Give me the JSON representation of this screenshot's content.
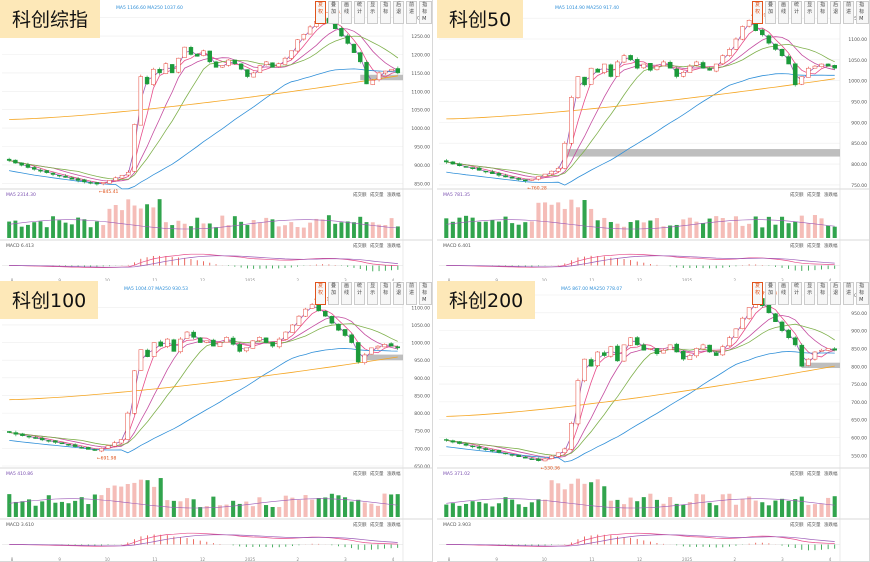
{
  "toolbar": [
    "复权",
    "叠加",
    "画线",
    "统计",
    "显示",
    "指标",
    "后退",
    "前进",
    "指标M"
  ],
  "sub_tabs": [
    "成交额",
    "成交量",
    "涨跌幅"
  ],
  "colors": {
    "up": "#e6473a",
    "down": "#1b9a3a",
    "ma5": "#9b59b6",
    "ma10": "#e74c8a",
    "ma20": "#c44da0",
    "ma30": "#7fb04c",
    "ma60": "#2f8fd8",
    "ma250": "#f5a623",
    "band": "#b3b3b3",
    "macd_dif": "#e74c8a",
    "macd_dea": "#9b59b6",
    "label_bg": "#fde8b8"
  },
  "chart_data": [
    {
      "type": "candlestick",
      "title": "科创综指",
      "price_ylim": [
        840,
        1310
      ],
      "price_ticks": [
        "1300.00",
        "1250.00",
        "1200.00",
        "1150.00",
        "1100.00",
        "1050.00",
        "1000.00",
        "950.00",
        "900.00",
        "850.00"
      ],
      "high_annotation": "1306.90",
      "low_annotation": "845.41",
      "ma_header": "MA5 1166.60   MA250 1037.60",
      "vol_header": "MA5  2314.30",
      "macd_header": "MACD 6.413",
      "gap_band": [
        1145,
        1130
      ],
      "x_ticks": [
        "8",
        "9",
        "10",
        "11",
        "12",
        "2025",
        "2",
        "3",
        "4"
      ],
      "closes": [
        912,
        905,
        899,
        893,
        888,
        883,
        879,
        874,
        870,
        866,
        861,
        858,
        854,
        851,
        848,
        852,
        858,
        865,
        872,
        880,
        1010,
        1140,
        1120,
        1160,
        1150,
        1175,
        1150,
        1190,
        1220,
        1200,
        1195,
        1210,
        1180,
        1165,
        1170,
        1185,
        1175,
        1160,
        1140,
        1150,
        1170,
        1180,
        1165,
        1175,
        1190,
        1210,
        1240,
        1255,
        1275,
        1290,
        1300,
        1285,
        1270,
        1250,
        1230,
        1205,
        1180,
        1120,
        1130,
        1150,
        1155,
        1160,
        1150
      ]
    },
    {
      "type": "candlestick",
      "title": "科创50",
      "price_ylim": [
        745,
        1160
      ],
      "price_ticks": [
        "1150.00",
        "1100.00",
        "1050.00",
        "1000.00",
        "950.00",
        "900.00",
        "850.00",
        "800.00",
        "750.00"
      ],
      "high_annotation": "1149.37",
      "low_annotation": "760.28",
      "ma_header": "MA5 1014.90   MA250 917.40",
      "vol_header": "MA5  781.35",
      "macd_header": "MACD 6.401",
      "gap_band": [
        836,
        818
      ],
      "x_ticks": [
        "8",
        "9",
        "10",
        "11",
        "12",
        "2025",
        "2",
        "3",
        "4"
      ],
      "closes": [
        805,
        800,
        796,
        792,
        789,
        785,
        781,
        777,
        773,
        769,
        766,
        763,
        760,
        764,
        770,
        776,
        783,
        790,
        850,
        960,
        1010,
        990,
        1030,
        1020,
        1040,
        1010,
        1045,
        1060,
        1050,
        1030,
        1040,
        1025,
        1035,
        1045,
        1030,
        1010,
        1020,
        1035,
        1045,
        1030,
        1025,
        1040,
        1060,
        1075,
        1100,
        1130,
        1145,
        1120,
        1110,
        1090,
        1075,
        1060,
        1040,
        990,
        1010,
        1030,
        1035,
        1040,
        1035,
        1030
      ]
    },
    {
      "type": "candlestick",
      "title": "科创100",
      "price_ylim": [
        650,
        1135
      ],
      "price_ticks": [
        "1100.00",
        "1050.00",
        "1000.00",
        "950.00",
        "900.00",
        "850.00",
        "800.00",
        "750.00",
        "700.00",
        "650.00"
      ],
      "high_annotation": "1111.40",
      "low_annotation": "691.98",
      "ma_header": "MA5 1004.07   MA250 930.53",
      "vol_header": "MA5  410.86",
      "macd_header": "MACD 3.610",
      "gap_band": [
        966,
        950
      ],
      "x_ticks": [
        "8",
        "9",
        "10",
        "11",
        "12",
        "2025",
        "2",
        "3",
        "4"
      ],
      "closes": [
        745,
        740,
        736,
        732,
        728,
        724,
        720,
        717,
        713,
        709,
        705,
        701,
        697,
        694,
        700,
        708,
        716,
        725,
        800,
        920,
        980,
        960,
        1000,
        990,
        1010,
        975,
        1010,
        1030,
        1015,
        1000,
        1005,
        990,
        1000,
        1015,
        995,
        975,
        985,
        1005,
        1015,
        1000,
        990,
        1010,
        1030,
        1050,
        1075,
        1095,
        1108,
        1090,
        1075,
        1055,
        1035,
        1020,
        1000,
        945,
        965,
        985,
        990,
        995,
        990,
        985
      ]
    },
    {
      "type": "candlestick",
      "title": "科创200",
      "price_ylim": [
        520,
        1000
      ],
      "price_ticks": [
        "1000.00",
        "950.00",
        "900.00",
        "850.00",
        "800.00",
        "750.00",
        "700.00",
        "650.00",
        "600.00",
        "550.00"
      ],
      "high_annotation": "995.65",
      "low_annotation": "530.36",
      "ma_header": "MA5 867.00   MA250 778.07",
      "vol_header": "MA5  371.02",
      "macd_header": "MACD 3.903",
      "gap_band": [
        810,
        795
      ],
      "x_ticks": [
        "8",
        "9",
        "10",
        "11",
        "12",
        "2025",
        "2",
        "3",
        "4"
      ],
      "closes": [
        592,
        587,
        583,
        578,
        574,
        570,
        566,
        562,
        558,
        554,
        550,
        546,
        542,
        538,
        535,
        540,
        548,
        557,
        568,
        640,
        760,
        820,
        800,
        840,
        830,
        855,
        815,
        860,
        880,
        860,
        845,
        850,
        835,
        845,
        860,
        840,
        820,
        830,
        850,
        860,
        840,
        830,
        855,
        880,
        905,
        935,
        965,
        990,
        970,
        950,
        925,
        900,
        880,
        860,
        800,
        820,
        840,
        845,
        850,
        845
      ]
    }
  ]
}
